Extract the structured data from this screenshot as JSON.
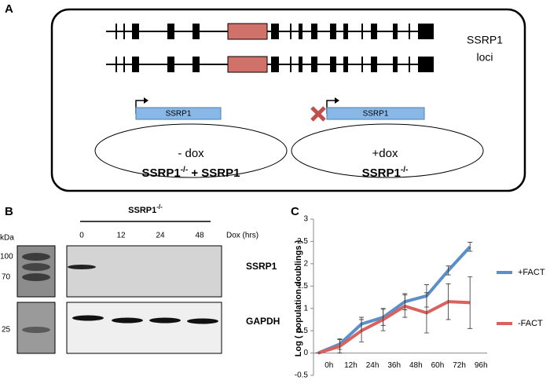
{
  "panel_a": {
    "label": "A",
    "loci_label": [
      "SSRP1",
      "loci"
    ],
    "left": {
      "gene": "SSRP1",
      "condition": "- dox",
      "genotype": [
        "SSRP1",
        "-/-",
        " + SSRP1"
      ]
    },
    "right": {
      "gene": "SSRP1",
      "condition": "+dox",
      "genotype": [
        "SSRP1",
        "-/-"
      ]
    }
  },
  "panel_b": {
    "label": "B",
    "genotype": [
      "SSRP1",
      "-/-"
    ],
    "kda": "kDa",
    "markers": [
      "100",
      "70",
      "25"
    ],
    "lanes": [
      "0",
      "12",
      "24",
      "48"
    ],
    "lane_axis": "Dox (hrs)",
    "bands": [
      "SSRP1",
      "GAPDH"
    ]
  },
  "chart_data": {
    "type": "line",
    "panel_label": "C",
    "y_label": "Log ( population doublings )",
    "categories": [
      "0h",
      "12h",
      "24h",
      "36h",
      "48h",
      "60h",
      "72h",
      "96h"
    ],
    "series": [
      {
        "name": "+FACT",
        "color": "#5b8fc7",
        "values": [
          0,
          0.2,
          0.65,
          0.8,
          1.15,
          1.28,
          1.85,
          2.38
        ],
        "errors": [
          0,
          0.12,
          0.15,
          0.18,
          0.18,
          0.25,
          0.1,
          0.1
        ]
      },
      {
        "name": "-FACT",
        "color": "#d9625e",
        "values": [
          0,
          0.15,
          0.5,
          0.75,
          1.05,
          0.9,
          1.15,
          1.13
        ],
        "errors": [
          0,
          0.15,
          0.25,
          0.25,
          0.25,
          0.45,
          0.4,
          0.58
        ]
      }
    ],
    "ylim": [
      -0.5,
      3
    ],
    "yticks": [
      -0.5,
      0,
      0.5,
      1,
      1.5,
      2,
      2.5,
      3
    ],
    "legend": "right"
  }
}
